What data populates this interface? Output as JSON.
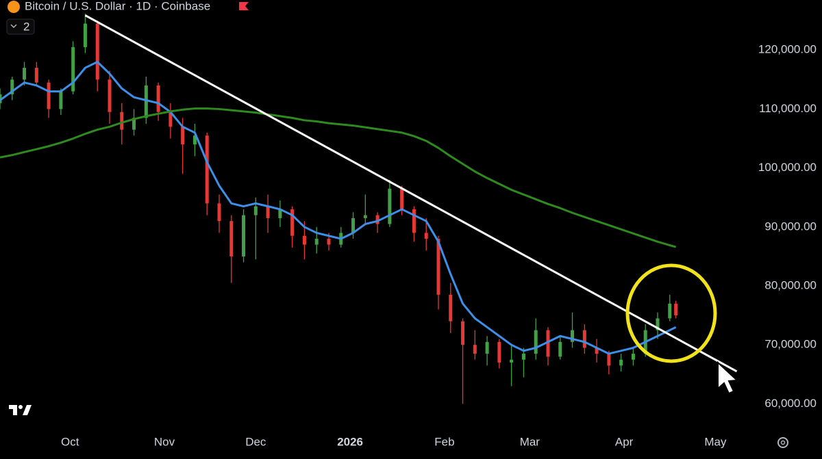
{
  "chart_data": {
    "type": "candlestick",
    "title": "Bitcoin / U.S. Dollar · 1D · Coinbase",
    "indicator_badge": "2",
    "up_color": "#43a047",
    "down_color": "#e53935",
    "x": [
      0,
      4,
      8,
      12,
      16,
      20,
      24,
      28,
      32,
      36,
      40,
      44,
      48,
      52,
      56,
      60,
      64,
      68,
      72,
      76,
      80,
      84,
      88,
      92,
      96,
      100,
      104,
      108,
      112,
      116,
      120,
      124,
      128,
      132,
      136,
      140,
      144,
      148,
      152,
      156,
      160,
      164,
      168,
      172,
      176,
      180,
      184,
      188,
      192,
      196,
      200,
      204,
      208,
      212,
      216,
      220,
      222
    ],
    "open": [
      111000,
      112500,
      115000,
      117000,
      114500,
      110000,
      113000,
      120500,
      124500,
      115000,
      109500,
      106500,
      108500,
      114000,
      109500,
      107000,
      104000,
      105500,
      94000,
      91000,
      85000,
      92000,
      93500,
      91500,
      93000,
      88500,
      87000,
      88000,
      87000,
      89000,
      91500,
      92000,
      90500,
      96500,
      93000,
      89000,
      88000,
      78500,
      74000,
      70000,
      68500,
      70500,
      67000,
      67500,
      68500,
      72500,
      68000,
      70500,
      72500,
      69500,
      68500,
      66500,
      67500,
      68500,
      72500,
      74500,
      77000
    ],
    "high": [
      113500,
      115500,
      118000,
      118000,
      115000,
      113500,
      121500,
      126200,
      125000,
      116500,
      111000,
      110000,
      115500,
      114500,
      111000,
      108500,
      107500,
      106000,
      95500,
      92000,
      93000,
      95000,
      95500,
      94500,
      93500,
      91000,
      90000,
      89000,
      90000,
      92500,
      95500,
      92500,
      98000,
      97000,
      93500,
      91500,
      88500,
      80500,
      74500,
      72500,
      71500,
      71000,
      70000,
      69500,
      74500,
      73000,
      71500,
      75500,
      73500,
      71000,
      69000,
      68500,
      69500,
      73500,
      75500,
      78500,
      77500
    ],
    "low": [
      110000,
      111500,
      114000,
      114000,
      108500,
      109000,
      112500,
      119500,
      113000,
      107500,
      104000,
      105500,
      107500,
      108000,
      105000,
      99000,
      102000,
      92000,
      89000,
      80500,
      84000,
      84500,
      89000,
      90000,
      86500,
      84500,
      85500,
      86000,
      86500,
      88000,
      90500,
      89000,
      90000,
      92000,
      87500,
      86000,
      76000,
      72000,
      60000,
      67500,
      66500,
      66000,
      63000,
      64500,
      67500,
      66500,
      67500,
      69500,
      68500,
      67000,
      65000,
      65500,
      66500,
      68000,
      71000,
      74000,
      74500
    ],
    "close": [
      112500,
      115000,
      117000,
      114500,
      110000,
      113000,
      120500,
      124500,
      115000,
      109500,
      106500,
      108500,
      114000,
      109500,
      107000,
      104000,
      105500,
      94000,
      91000,
      85000,
      92000,
      93500,
      91500,
      93000,
      88500,
      87000,
      88000,
      87000,
      89000,
      91500,
      92000,
      90500,
      96500,
      93000,
      89000,
      88000,
      78500,
      74000,
      70000,
      68500,
      70500,
      67000,
      67500,
      68500,
      72500,
      68000,
      70500,
      72500,
      69500,
      68500,
      66500,
      67500,
      68500,
      72500,
      74500,
      77000,
      75000
    ],
    "lines": [
      {
        "color": "#3d8fe8",
        "values": [
          111500,
          113000,
          114500,
          114000,
          113000,
          113000,
          114500,
          117000,
          118000,
          116000,
          113500,
          112000,
          111500,
          111000,
          109500,
          107000,
          106000,
          101000,
          97000,
          94000,
          93500,
          94000,
          93500,
          93000,
          92000,
          90000,
          89000,
          88500,
          88000,
          89000,
          90500,
          91000,
          92000,
          93000,
          92000,
          91000,
          87500,
          82000,
          77000,
          74500,
          73000,
          71500,
          70000,
          69000,
          69500,
          70500,
          71500,
          71000,
          70500,
          69500,
          68500,
          69000,
          69500,
          70500,
          71500,
          72500,
          73000
        ]
      },
      {
        "color": "#2f8a1f",
        "values": [
          101800,
          102200,
          102700,
          103200,
          103700,
          104300,
          105000,
          105800,
          106500,
          107000,
          107700,
          108300,
          108800,
          109200,
          109600,
          109900,
          110100,
          110100,
          110000,
          109800,
          109600,
          109400,
          109100,
          108800,
          108500,
          108100,
          107900,
          107600,
          107400,
          107200,
          106900,
          106600,
          106300,
          106000,
          105400,
          104600,
          103400,
          102000,
          100700,
          99400,
          98300,
          97300,
          96300,
          95500,
          94700,
          93900,
          93200,
          92400,
          91700,
          91000,
          90300,
          89600,
          88900,
          88200,
          87500,
          86900,
          86600
        ]
      }
    ],
    "trendline": {
      "color": "#ffffff",
      "x": [
        28,
        242
      ],
      "values": [
        125900,
        65500
      ]
    },
    "xlim": [
      0,
      243
    ],
    "ylim": [
      55400,
      128500
    ],
    "xticks": [
      {
        "value": 23,
        "label": "Oct"
      },
      {
        "value": 54,
        "label": "Nov"
      },
      {
        "value": 84,
        "label": "Dec"
      },
      {
        "value": 115,
        "label": "2026"
      },
      {
        "value": 146,
        "label": "Feb"
      },
      {
        "value": 174,
        "label": "Mar"
      },
      {
        "value": 205,
        "label": "Apr"
      },
      {
        "value": 235,
        "label": "May"
      }
    ],
    "yticks": [
      {
        "value": 60000,
        "label": "60,000.00"
      },
      {
        "value": 70000,
        "label": "70,000.00"
      },
      {
        "value": 80000,
        "label": "80,000.00"
      },
      {
        "value": 90000,
        "label": "90,000.00"
      },
      {
        "value": 100000,
        "label": "100,000.00"
      },
      {
        "value": 110000,
        "label": "110,000.00"
      },
      {
        "value": 120000,
        "label": "120,000.00"
      }
    ]
  }
}
